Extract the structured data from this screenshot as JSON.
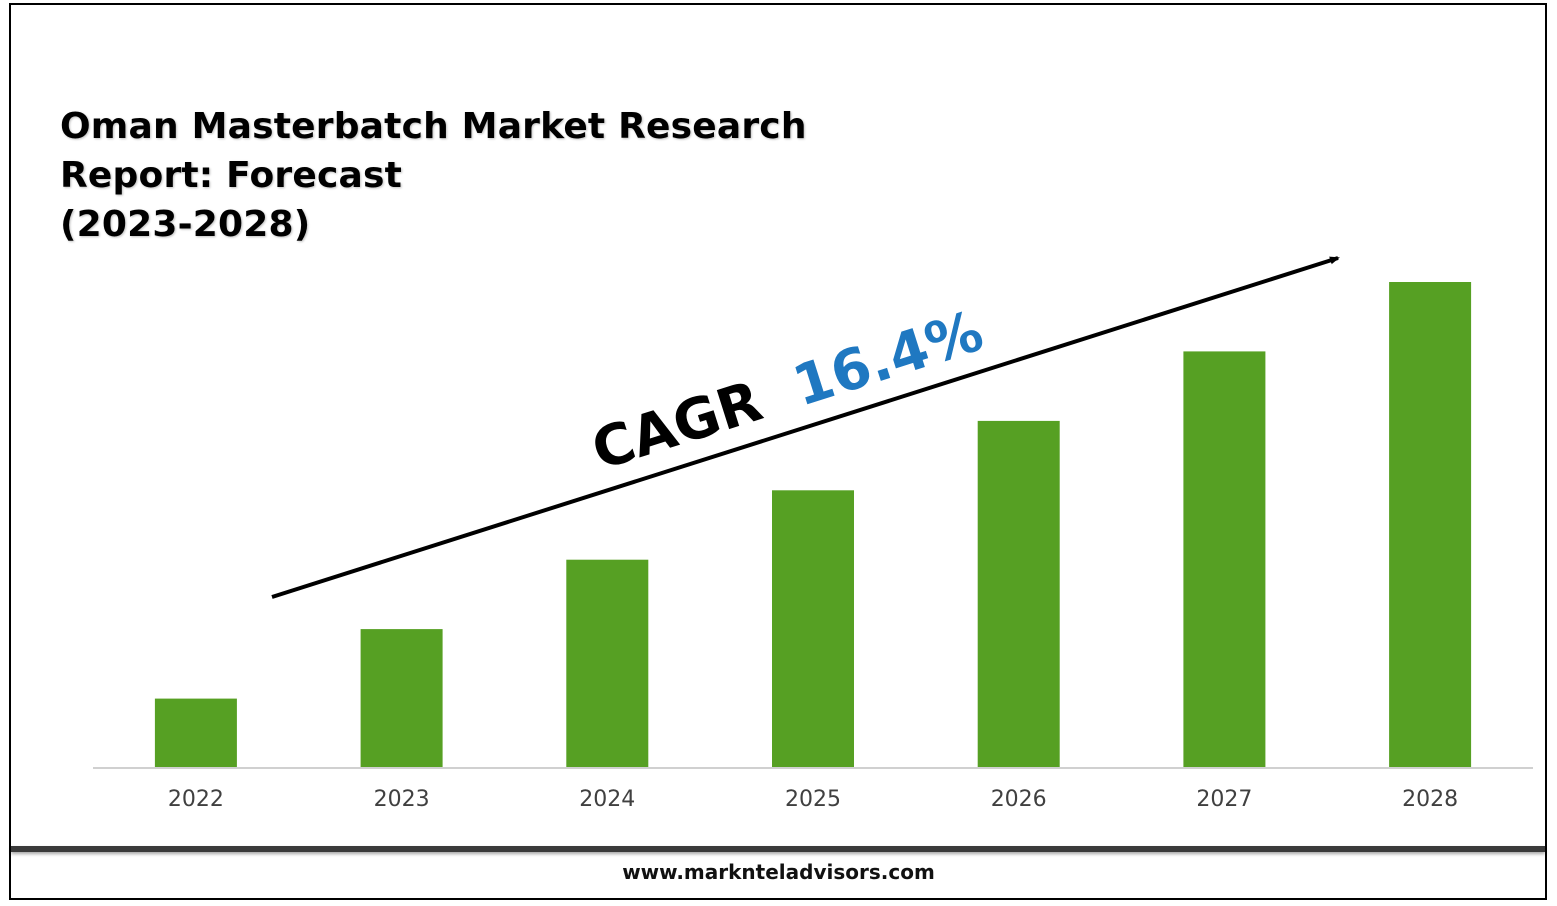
{
  "title_lines": [
    "Oman Masterbatch Market Research",
    "Report: Forecast",
    "(2023-2028)"
  ],
  "footer": {
    "url": "www.marknteladvisors.com"
  },
  "annotation": {
    "label": "CAGR",
    "value": "16.4%",
    "label_color": "#000000",
    "value_color": "#1f78c1"
  },
  "colors": {
    "bar": "#56a023",
    "axis": "#d0d0d0"
  },
  "chart_data": {
    "type": "bar",
    "categories": [
      "2022",
      "2023",
      "2024",
      "2025",
      "2026",
      "2027",
      "2028"
    ],
    "values": [
      1,
      2,
      3,
      4,
      5,
      6,
      7
    ],
    "title": "Oman Masterbatch Market Research Report: Forecast (2023-2028)",
    "xlabel": "",
    "ylabel": "",
    "ylim": [
      0,
      7
    ],
    "grid": false,
    "legend": "none"
  }
}
